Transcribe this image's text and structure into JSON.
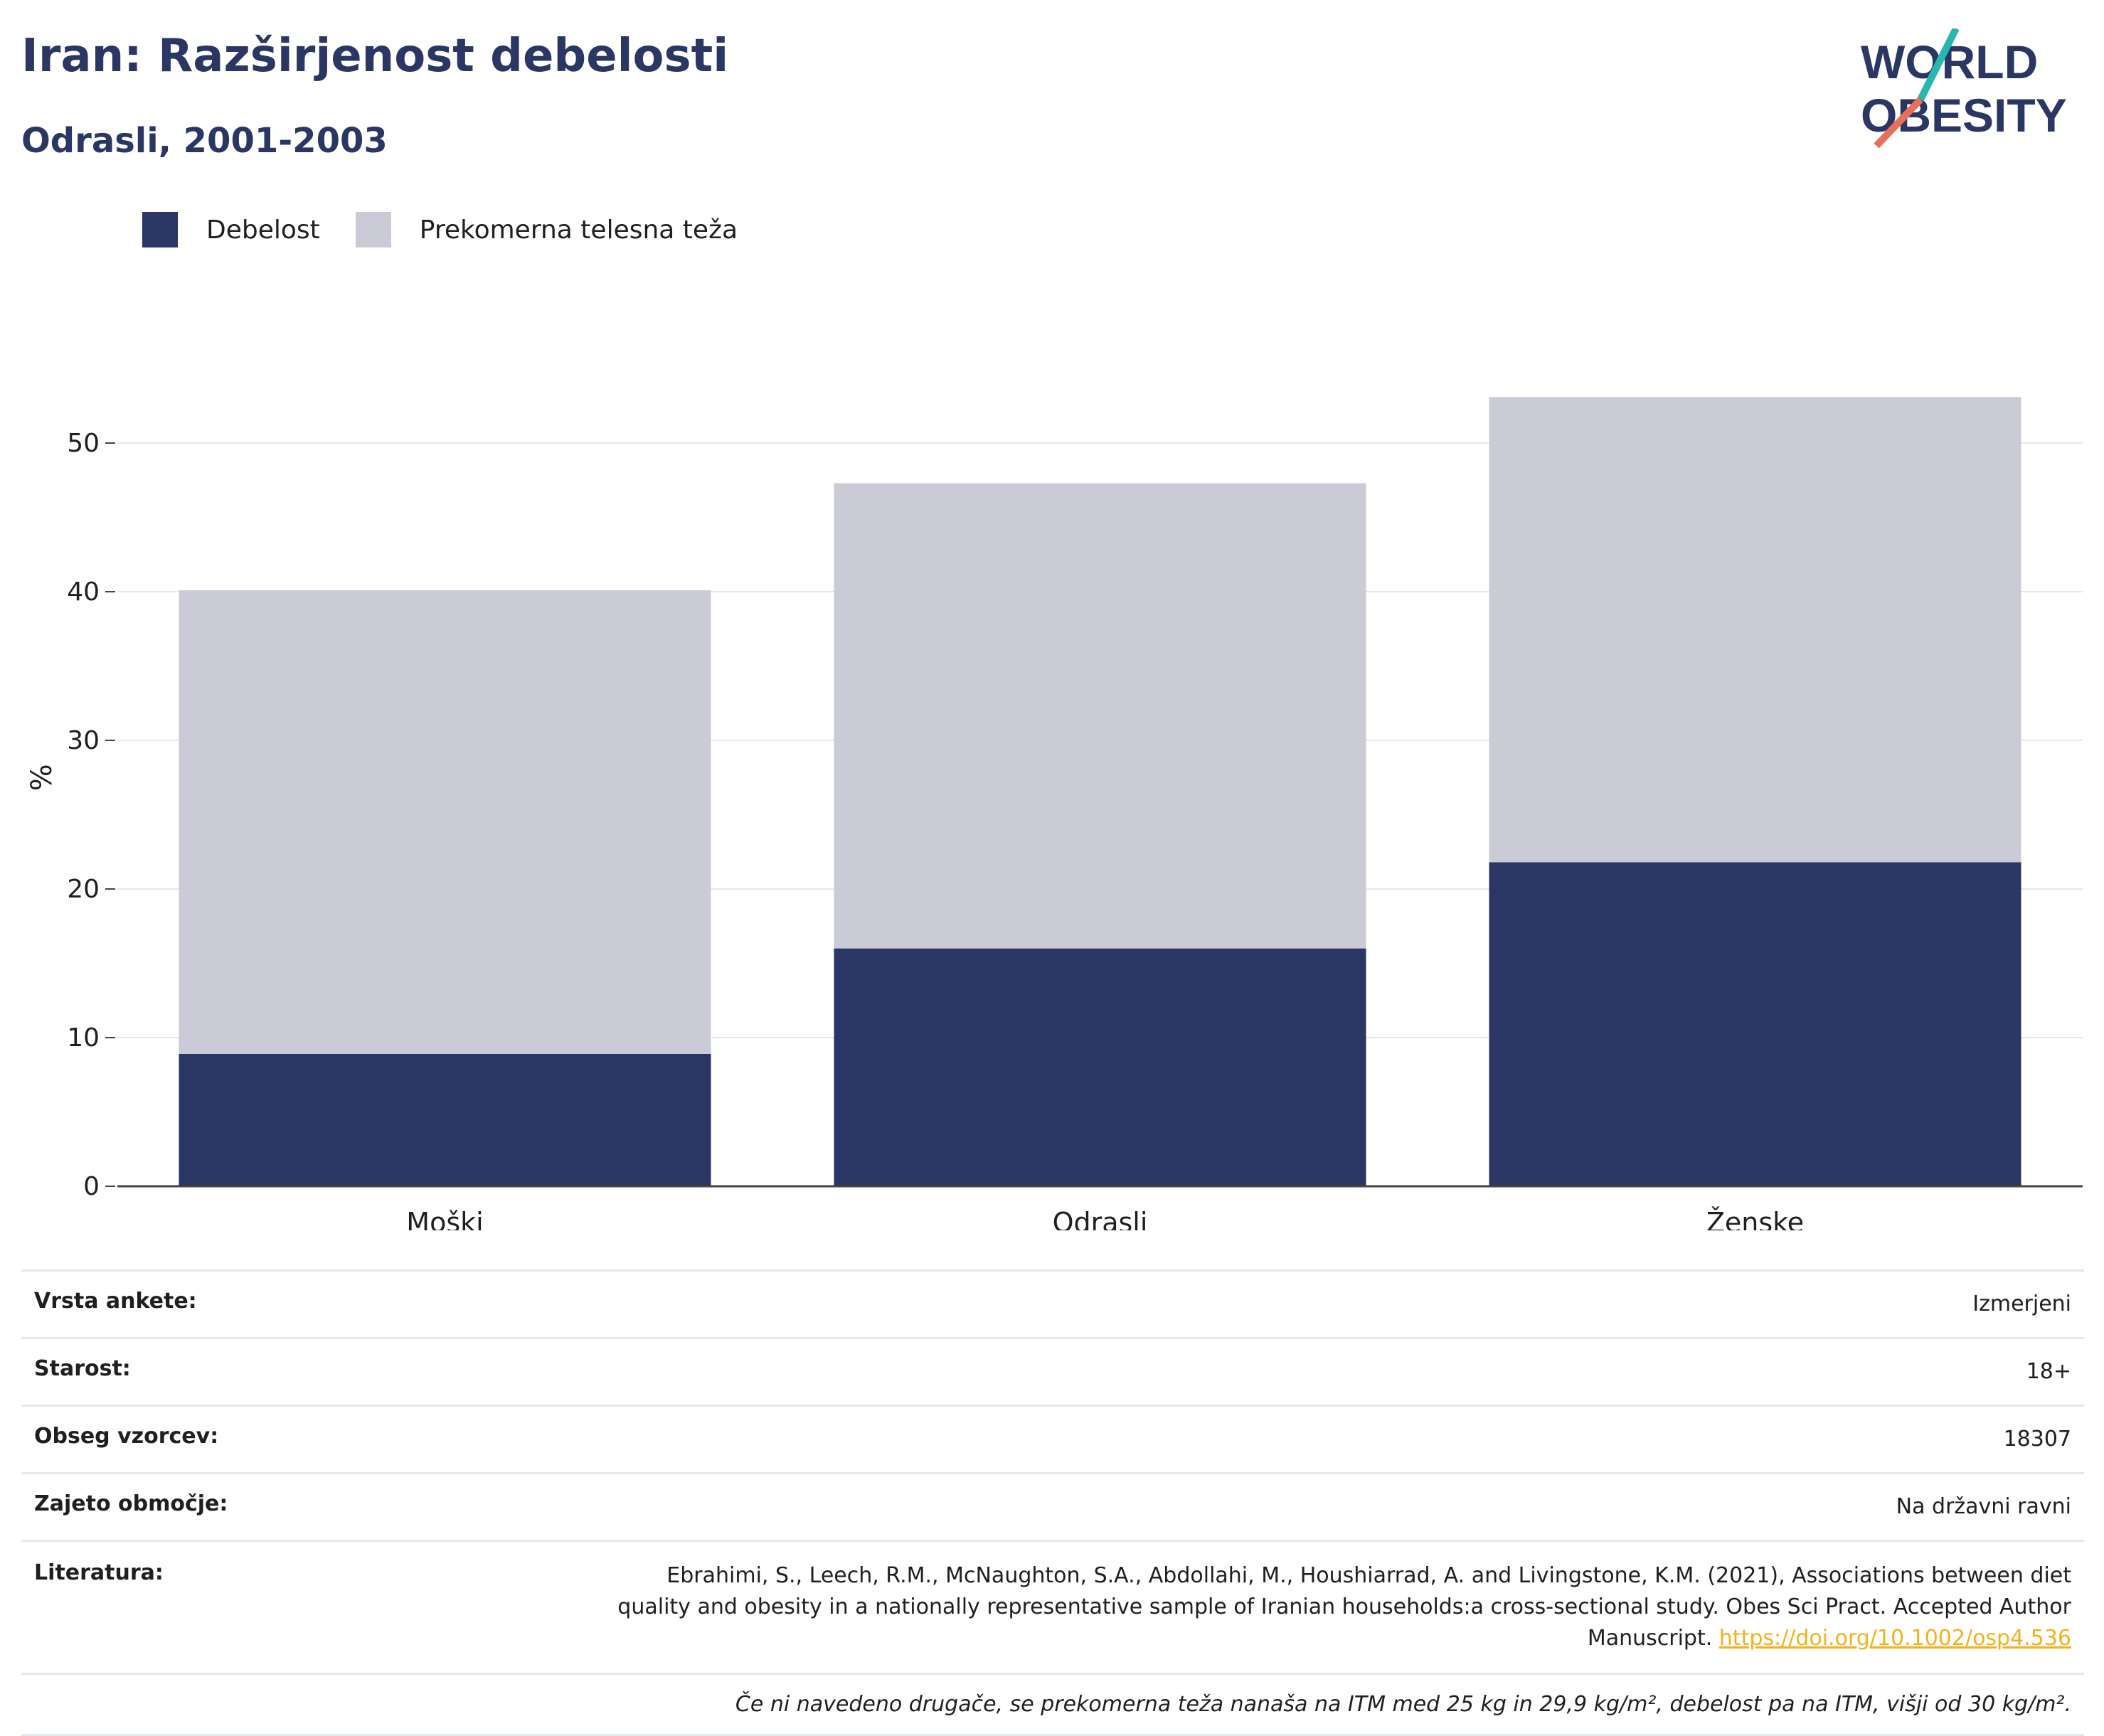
{
  "header": {
    "title": "Iran: Razširjenost debelosti",
    "subtitle": "Odrasli, 2001-2003"
  },
  "logo": {
    "line1": "WORLD",
    "line2": "OBESITY"
  },
  "colors": {
    "obesity": "#2a3663",
    "overweight": "#cacbd6",
    "accent_teal": "#29b6b1",
    "accent_coral": "#e8705a"
  },
  "legend": [
    {
      "label": "Debelost",
      "color": "#2a3663"
    },
    {
      "label": "Prekomerna telesna teža",
      "color": "#cacbd6"
    }
  ],
  "chart_data": {
    "type": "bar",
    "stacked": true,
    "categories": [
      "Moški",
      "Odrasli",
      "Ženske"
    ],
    "series": [
      {
        "name": "Debelost",
        "values": [
          8.9,
          16.0,
          21.8
        ]
      },
      {
        "name": "Prekomerna telesna teža",
        "values": [
          31.2,
          31.3,
          31.3
        ]
      }
    ],
    "ylabel": "%",
    "ylim": [
      0,
      55
    ],
    "yticks": [
      0,
      10,
      20,
      30,
      40,
      50
    ],
    "grid": true,
    "legend_position": "top-left"
  },
  "info": {
    "survey_type": {
      "label": "Vrsta ankete:",
      "value": "Izmerjeni"
    },
    "age": {
      "label": "Starost:",
      "value": "18+"
    },
    "sample": {
      "label": "Obseg vzorcev:",
      "value": "18307"
    },
    "area": {
      "label": "Zajeto območje:",
      "value": "Na državni ravni"
    },
    "literature": {
      "label": "Literatura:",
      "line1": "Ebrahimi, S., Leech, R.M., McNaughton, S.A., Abdollahi, M., Houshiarrad, A. and Livingstone, K.M. (2021), Associations between diet",
      "line2": "quality and obesity in a nationally representative sample of Iranian households:a cross-sectional study. Obes Sci Pract. Accepted Author",
      "line3": "Manuscript.",
      "doi": "https://doi.org/10.1002/osp4.536"
    },
    "note": "Če ni navedeno drugače, se prekomerna teža nanaša na ITM med 25 kg in 29,9 kg/m², debelost pa na ITM, višji od 30 kg/m²."
  }
}
